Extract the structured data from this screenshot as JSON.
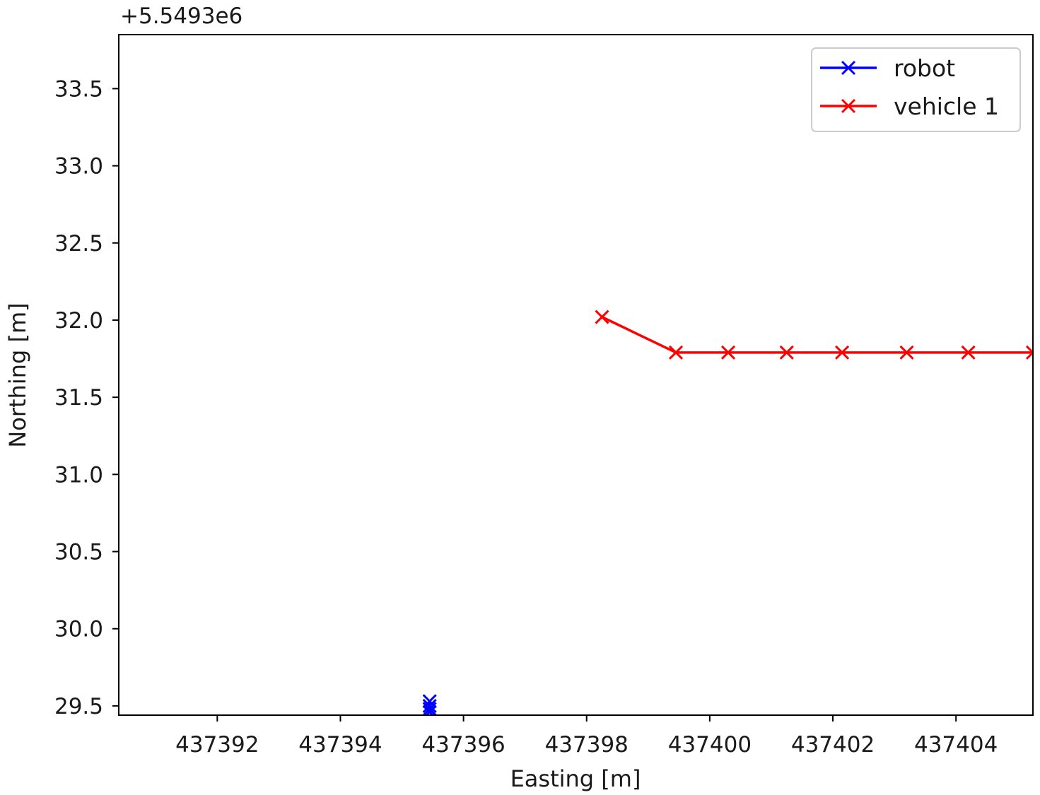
{
  "chart_data": {
    "type": "line",
    "title": "",
    "xlabel": "Easting [m]",
    "ylabel": "Northing [m]",
    "y_offset_label": "+5.5493e6",
    "xlim": [
      437390.4,
      437405.25
    ],
    "ylim": [
      29.44,
      33.85
    ],
    "x_ticks": [
      437392,
      437394,
      437396,
      437398,
      437400,
      437402,
      437404
    ],
    "x_tick_labels": [
      "437392",
      "437394",
      "437396",
      "437398",
      "437400",
      "437402",
      "437404"
    ],
    "y_ticks": [
      29.5,
      30.0,
      30.5,
      31.0,
      31.5,
      32.0,
      32.5,
      33.0,
      33.5
    ],
    "y_tick_labels": [
      "29.5",
      "30.0",
      "30.5",
      "31.0",
      "31.5",
      "32.0",
      "32.5",
      "33.0",
      "33.5"
    ],
    "grid": false,
    "legend_position": "top-right",
    "series": [
      {
        "name": "robot",
        "color": "#0000ff",
        "marker": "x",
        "x": [
          437395.45,
          437395.45,
          437395.45,
          437395.45
        ],
        "y": [
          29.53,
          29.5,
          29.48,
          29.46
        ]
      },
      {
        "name": "vehicle 1",
        "color": "#ff0000",
        "marker": "x",
        "x": [
          437398.25,
          437399.45,
          437400.3,
          437401.25,
          437402.15,
          437403.2,
          437404.2,
          437405.25
        ],
        "y": [
          32.02,
          31.79,
          31.79,
          31.79,
          31.79,
          31.79,
          31.79,
          31.79
        ]
      }
    ]
  }
}
